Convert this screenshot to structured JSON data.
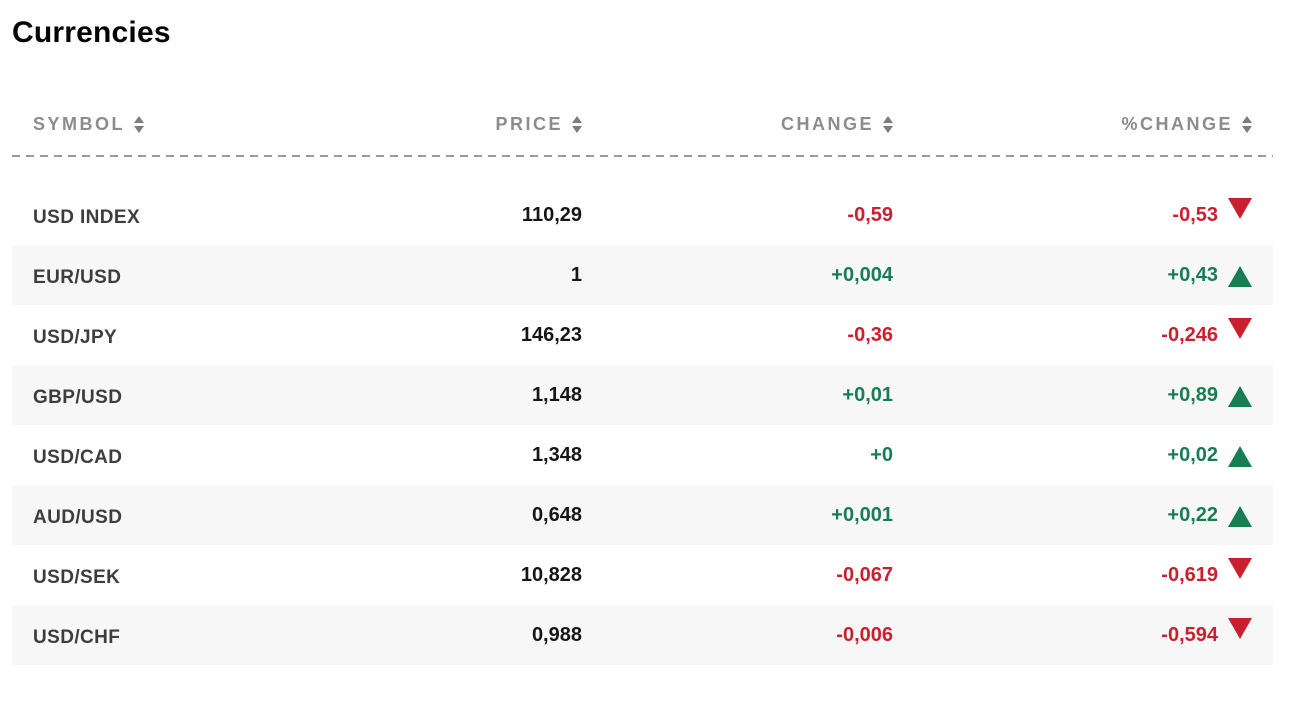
{
  "title": "Currencies",
  "colors": {
    "positive_green": "#177e54",
    "negative_red": "#c8202f",
    "header_gray": "#8c8c8c",
    "alt_row_bg": "#f7f7f7",
    "symbol_text": "#3d3d3d",
    "value_text": "#161616"
  },
  "table": {
    "columns": [
      {
        "key": "symbol",
        "label": "SYMBOL"
      },
      {
        "key": "price",
        "label": "PRICE"
      },
      {
        "key": "change",
        "label": "CHANGE"
      },
      {
        "key": "pct_change",
        "label": "%CHANGE"
      }
    ],
    "rows": [
      {
        "symbol": "USD INDEX",
        "price": "110,29",
        "change": "-0,59",
        "pct_change": "-0,53",
        "direction": "down"
      },
      {
        "symbol": "EUR/USD",
        "price": "1",
        "change": "+0,004",
        "pct_change": "+0,43",
        "direction": "up"
      },
      {
        "symbol": "USD/JPY",
        "price": "146,23",
        "change": "-0,36",
        "pct_change": "-0,246",
        "direction": "down"
      },
      {
        "symbol": "GBP/USD",
        "price": "1,148",
        "change": "+0,01",
        "pct_change": "+0,89",
        "direction": "up"
      },
      {
        "symbol": "USD/CAD",
        "price": "1,348",
        "change": "+0",
        "pct_change": "+0,02",
        "direction": "up"
      },
      {
        "symbol": "AUD/USD",
        "price": "0,648",
        "change": "+0,001",
        "pct_change": "+0,22",
        "direction": "up"
      },
      {
        "symbol": "USD/SEK",
        "price": "10,828",
        "change": "-0,067",
        "pct_change": "-0,619",
        "direction": "down"
      },
      {
        "symbol": "USD/CHF",
        "price": "0,988",
        "change": "-0,006",
        "pct_change": "-0,594",
        "direction": "down"
      }
    ]
  }
}
